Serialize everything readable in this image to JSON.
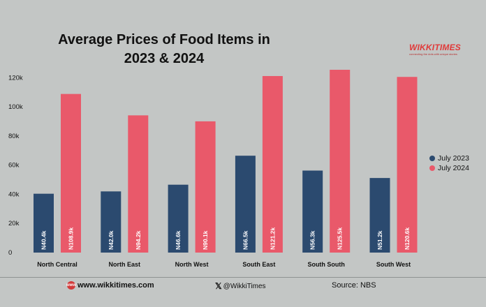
{
  "colors": {
    "background": "#c3c6c5",
    "july_2023": "#2b4a6f",
    "july_2024": "#e9596a"
  },
  "brand": {
    "logo_text": "WIKKITIMES",
    "tagline": "connecting the dots with unique stories"
  },
  "footer": {
    "website": "www.wikkitimes.com",
    "twitter": "@WikkiTimes",
    "source": "Source: NBS",
    "web_icon": "globe-icon",
    "x_icon": "x-logo-icon"
  },
  "chart_data": {
    "type": "bar",
    "title": "Average Prices of Food Items in 2023 & 2024",
    "title_lines": [
      "Average Prices of Food Items in",
      "2023 & 2024"
    ],
    "categories": [
      "North Central",
      "North East",
      "North West",
      "South East",
      "South South",
      "South West"
    ],
    "series": [
      {
        "name": "July 2023",
        "values": [
          40400,
          42000,
          46600,
          66500,
          56300,
          51200
        ],
        "labels": [
          "N40.4k",
          "N42.0k",
          "N46.6k",
          "N66.5k",
          "N56.3k",
          "N51.2k"
        ]
      },
      {
        "name": "July 2024",
        "values": [
          108900,
          94200,
          90100,
          121200,
          125500,
          120600
        ],
        "labels": [
          "N108.9k",
          "N94.2k",
          "N90.1k",
          "N121.2k",
          "N125.5k",
          "N120.6k"
        ]
      }
    ],
    "yticks": [
      "0",
      "20k",
      "40k",
      "60k",
      "80k",
      "100k",
      "120k"
    ],
    "ylim": [
      0,
      125500
    ],
    "grid": false,
    "legend": "right"
  }
}
